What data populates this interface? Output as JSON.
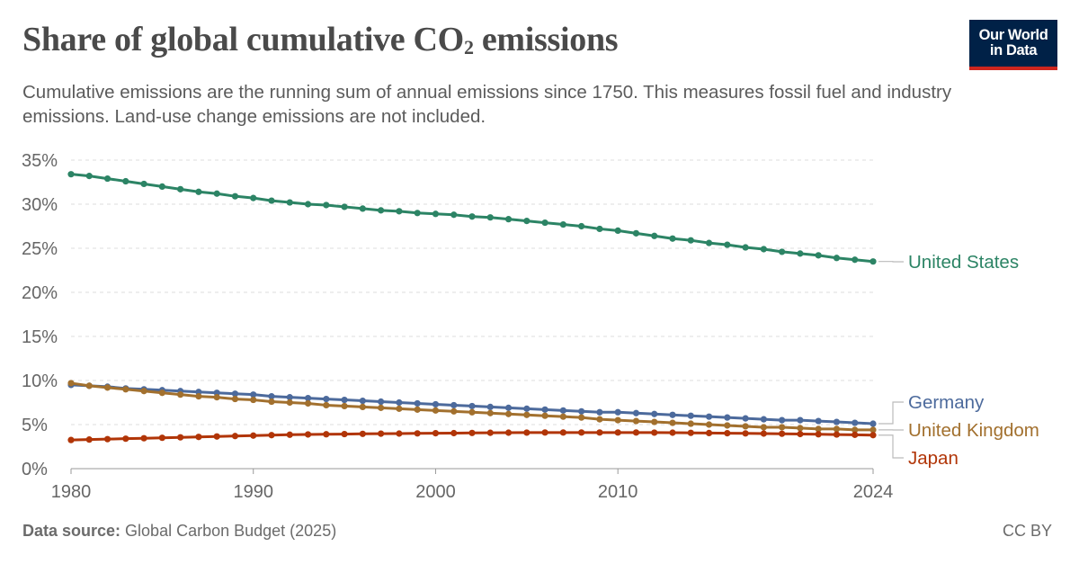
{
  "header": {
    "title_main": "Share of global cumulative CO",
    "title_sub": "2",
    "title_end": " emissions",
    "subtitle": "Cumulative emissions are the running sum of annual emissions since 1750. This measures fossil fuel and industry emissions. Land-use change emissions are not included.",
    "logo_line1": "Our World",
    "logo_line2": "in Data"
  },
  "footer": {
    "source_label": "Data source:",
    "source_text": " Global Carbon Budget (2025)",
    "license": "CC BY"
  },
  "colors": {
    "United States": "#2c8465",
    "Germany": "#4c6a9c",
    "United Kingdom": "#a2702e",
    "Japan": "#b13507",
    "grid": "#dddddd",
    "axis": "#999999"
  },
  "chart_data": {
    "type": "line",
    "title": "Share of global cumulative CO2 emissions",
    "xlabel": "",
    "ylabel": "",
    "xlim": [
      1980,
      2024
    ],
    "ylim": [
      0,
      35
    ],
    "x_ticks": [
      1980,
      1990,
      2000,
      2010,
      2024
    ],
    "y_ticks": [
      0,
      5,
      10,
      15,
      20,
      25,
      30,
      35
    ],
    "y_tick_labels": [
      "0%",
      "5%",
      "10%",
      "15%",
      "20%",
      "25%",
      "30%",
      "35%"
    ],
    "grid": "horizontal dashed",
    "legend": "direct labels at right end of lines",
    "x": [
      1980,
      1981,
      1982,
      1983,
      1984,
      1985,
      1986,
      1987,
      1988,
      1989,
      1990,
      1991,
      1992,
      1993,
      1994,
      1995,
      1996,
      1997,
      1998,
      1999,
      2000,
      2001,
      2002,
      2003,
      2004,
      2005,
      2006,
      2007,
      2008,
      2009,
      2010,
      2011,
      2012,
      2013,
      2014,
      2015,
      2016,
      2017,
      2018,
      2019,
      2020,
      2021,
      2022,
      2023,
      2024
    ],
    "series": [
      {
        "name": "United States",
        "values": [
          33.4,
          33.2,
          32.9,
          32.6,
          32.3,
          32.0,
          31.7,
          31.4,
          31.2,
          30.9,
          30.7,
          30.4,
          30.2,
          30.0,
          29.9,
          29.7,
          29.5,
          29.3,
          29.2,
          29.0,
          28.9,
          28.8,
          28.6,
          28.5,
          28.3,
          28.1,
          27.9,
          27.7,
          27.5,
          27.2,
          27.0,
          26.7,
          26.4,
          26.1,
          25.9,
          25.6,
          25.4,
          25.1,
          24.9,
          24.6,
          24.4,
          24.2,
          23.9,
          23.7,
          23.5
        ]
      },
      {
        "name": "Germany",
        "values": [
          9.5,
          9.4,
          9.3,
          9.1,
          9.0,
          8.9,
          8.8,
          8.7,
          8.6,
          8.5,
          8.4,
          8.2,
          8.1,
          8.0,
          7.9,
          7.8,
          7.7,
          7.6,
          7.5,
          7.4,
          7.3,
          7.2,
          7.1,
          7.0,
          6.9,
          6.8,
          6.7,
          6.6,
          6.5,
          6.4,
          6.4,
          6.3,
          6.2,
          6.1,
          6.0,
          5.9,
          5.8,
          5.7,
          5.6,
          5.5,
          5.5,
          5.4,
          5.3,
          5.2,
          5.1
        ]
      },
      {
        "name": "United Kingdom",
        "values": [
          9.7,
          9.4,
          9.2,
          9.0,
          8.8,
          8.6,
          8.4,
          8.2,
          8.1,
          7.9,
          7.8,
          7.6,
          7.5,
          7.4,
          7.2,
          7.1,
          7.0,
          6.9,
          6.8,
          6.7,
          6.6,
          6.5,
          6.4,
          6.3,
          6.2,
          6.1,
          6.0,
          5.9,
          5.8,
          5.6,
          5.5,
          5.4,
          5.3,
          5.2,
          5.1,
          5.0,
          4.9,
          4.8,
          4.7,
          4.7,
          4.6,
          4.5,
          4.5,
          4.4,
          4.4
        ]
      },
      {
        "name": "Japan",
        "values": [
          3.25,
          3.3,
          3.35,
          3.4,
          3.45,
          3.5,
          3.55,
          3.6,
          3.65,
          3.7,
          3.75,
          3.8,
          3.85,
          3.88,
          3.9,
          3.92,
          3.95,
          3.97,
          3.98,
          4.0,
          4.02,
          4.03,
          4.05,
          4.07,
          4.08,
          4.09,
          4.1,
          4.1,
          4.1,
          4.1,
          4.1,
          4.1,
          4.09,
          4.08,
          4.06,
          4.04,
          4.02,
          4.0,
          3.98,
          3.96,
          3.93,
          3.9,
          3.87,
          3.84,
          3.8
        ]
      }
    ]
  }
}
